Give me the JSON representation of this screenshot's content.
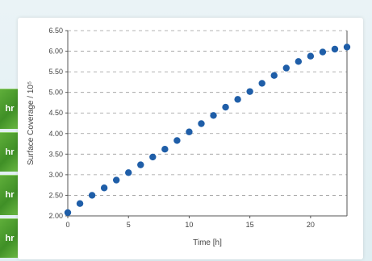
{
  "side_tabs": [
    "hr",
    "hr",
    "hr",
    "hr"
  ],
  "chart_data": {
    "type": "scatter",
    "xlabel": "Time [h]",
    "ylabel": "Surface Coverage / 10⁵",
    "xlim": [
      0,
      23
    ],
    "ylim": [
      2.0,
      6.5
    ],
    "xticks": [
      0,
      5,
      10,
      15,
      20
    ],
    "yticks": [
      "2.00",
      "2.50",
      "3.00",
      "3.50",
      "4.00",
      "4.50",
      "5.00",
      "5.50",
      "6.00",
      "6.50"
    ],
    "grid": "horizontal-dashed",
    "marker_color": "#1f5ea8",
    "x": [
      0,
      1,
      2,
      3,
      4,
      5,
      6,
      7,
      8,
      9,
      10,
      11,
      12,
      13,
      14,
      15,
      16,
      17,
      18,
      19,
      20,
      21,
      22,
      23
    ],
    "y": [
      2.08,
      2.3,
      2.5,
      2.68,
      2.87,
      3.05,
      3.24,
      3.43,
      3.62,
      3.83,
      4.04,
      4.24,
      4.44,
      4.64,
      4.83,
      5.02,
      5.22,
      5.41,
      5.59,
      5.75,
      5.88,
      5.98,
      6.05,
      6.1
    ]
  }
}
